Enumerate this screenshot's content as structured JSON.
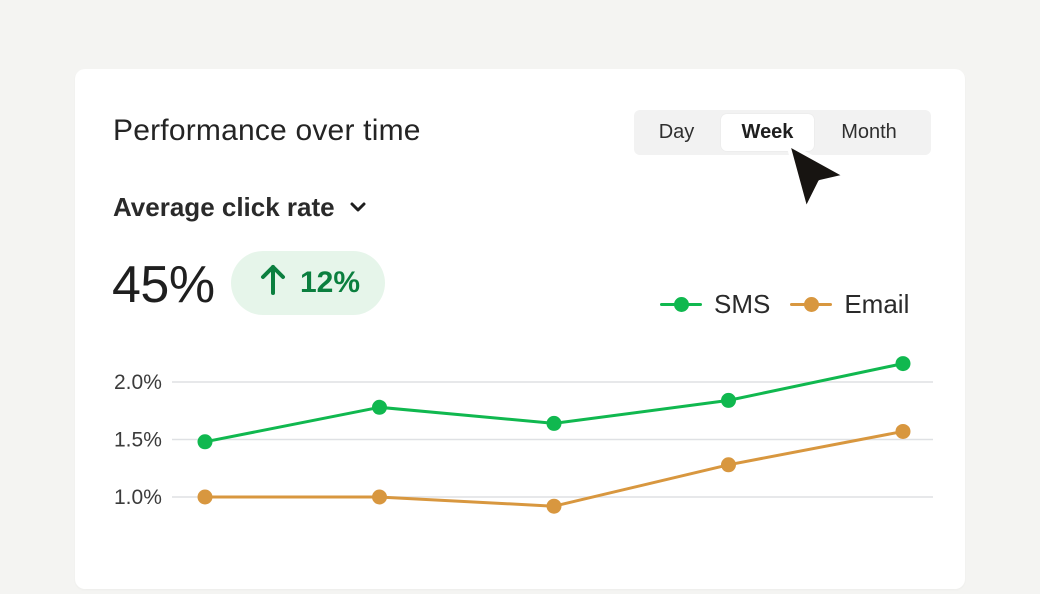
{
  "header": {
    "title": "Performance over time"
  },
  "range": {
    "options": [
      "Day",
      "Week",
      "Month"
    ],
    "selected": "Week"
  },
  "metric": {
    "label": "Average click rate",
    "icon": "chevron-down-icon",
    "value": "45%",
    "delta": "12%",
    "delta_icon": "arrow-up-icon",
    "delta_color": "#0b7f3f",
    "delta_bg": "#e6f5ea"
  },
  "chart_data": {
    "type": "line",
    "x": [
      1,
      2,
      3,
      4,
      5
    ],
    "ylim": [
      1.0,
      2.0
    ],
    "y_ticks": [
      2.0,
      1.5,
      1.0
    ],
    "y_tick_labels": [
      "2.0%",
      "1.5%",
      "1.0%"
    ],
    "grid": true,
    "legend_position": "top-right",
    "series": [
      {
        "name": "SMS",
        "color": "#10b84f",
        "values": [
          1.48,
          1.78,
          1.64,
          1.84,
          2.16
        ]
      },
      {
        "name": "Email",
        "color": "#d8973f",
        "values": [
          1.0,
          1.0,
          0.92,
          1.28,
          1.57
        ]
      }
    ]
  },
  "cursor": {
    "icon": "mouse-pointer-icon"
  }
}
